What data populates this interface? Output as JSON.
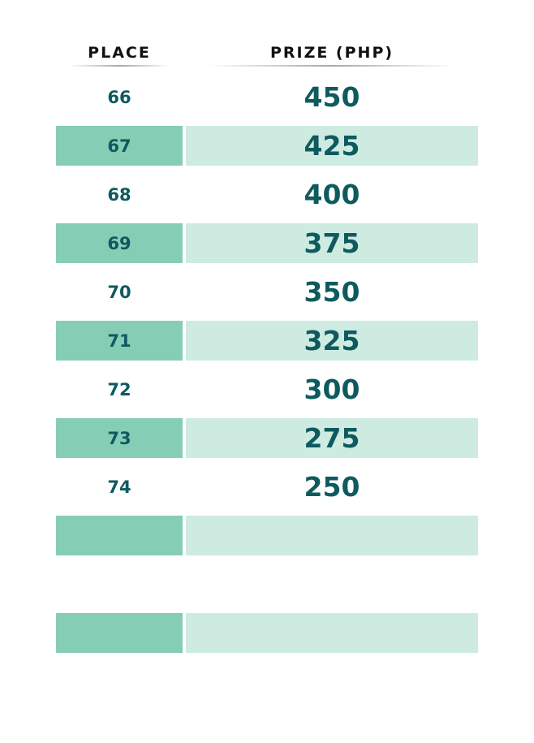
{
  "table": {
    "header": [
      "PLACE",
      "PRIZE (PHP)"
    ],
    "rows": [
      [
        66,
        450
      ],
      [
        67,
        425
      ],
      [
        68,
        400
      ],
      [
        69,
        375
      ],
      [
        70,
        350
      ],
      [
        71,
        325
      ],
      [
        72,
        300
      ],
      [
        73,
        275
      ],
      [
        74,
        250
      ]
    ]
  }
}
